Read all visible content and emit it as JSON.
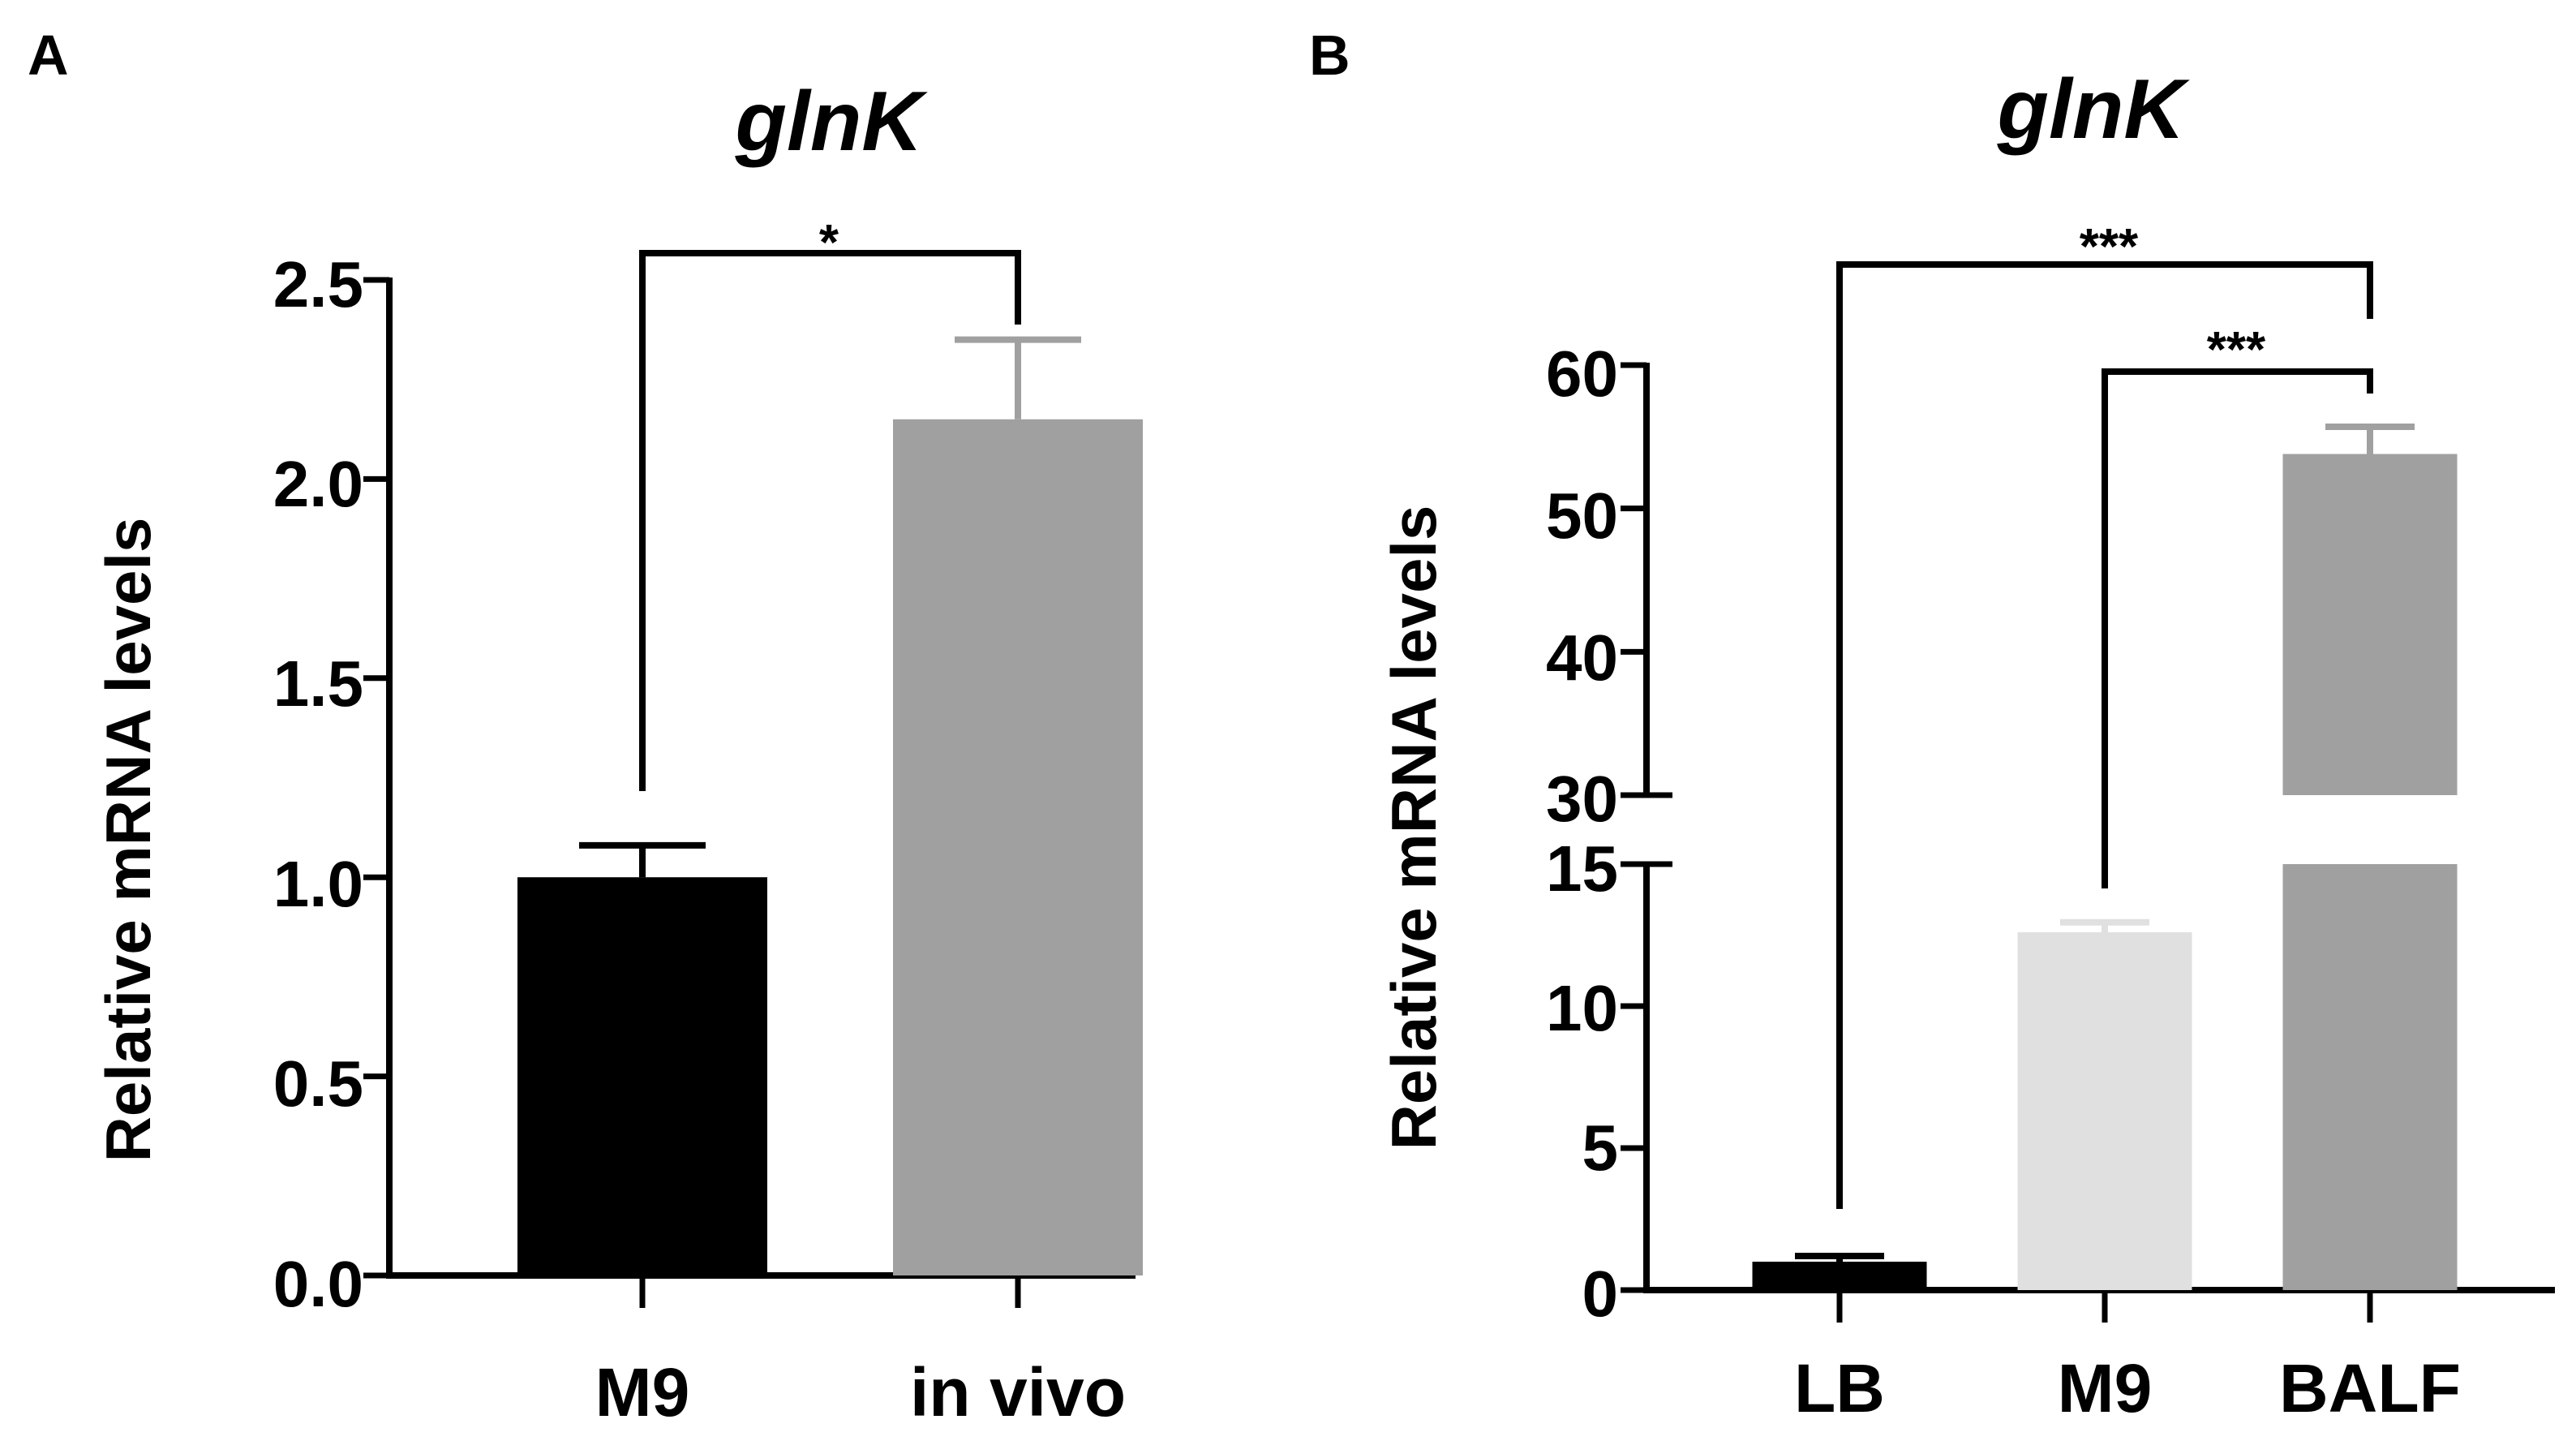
{
  "chart_data": [
    {
      "panel": "A",
      "type": "bar",
      "title": "glnK",
      "xlabel": "",
      "ylabel": "Relative mRNA levels",
      "ylim": [
        0,
        2.5
      ],
      "yticks": [
        "0.0",
        "0.5",
        "1.0",
        "1.5",
        "2.0",
        "2.5"
      ],
      "grid": false,
      "categories": [
        "M9",
        "in vivo"
      ],
      "values": [
        1.0,
        2.15
      ],
      "errors": [
        0.08,
        0.2
      ],
      "colors": [
        "#000000",
        "#a0a0a0"
      ],
      "significance": [
        {
          "from": "M9",
          "to": "in vivo",
          "label": "*"
        }
      ]
    },
    {
      "panel": "B",
      "type": "bar",
      "title": "glnK",
      "xlabel": "",
      "ylabel": "Relative mRNA levels",
      "ylim": [
        0,
        60
      ],
      "axis_break": [
        15,
        30
      ],
      "yticks": [
        "0",
        "5",
        "10",
        "15",
        "30",
        "40",
        "50",
        "60"
      ],
      "grid": false,
      "categories": [
        "LB",
        "M9",
        "BALF"
      ],
      "values": [
        1.0,
        12.6,
        53.8
      ],
      "errors": [
        0.2,
        0.35,
        1.9
      ],
      "colors": [
        "#000000",
        "#e0e0e0",
        "#a0a0a0"
      ],
      "significance": [
        {
          "from": "LB",
          "to": "BALF",
          "label": "***"
        },
        {
          "from": "M9",
          "to": "BALF",
          "label": "***"
        }
      ]
    }
  ]
}
